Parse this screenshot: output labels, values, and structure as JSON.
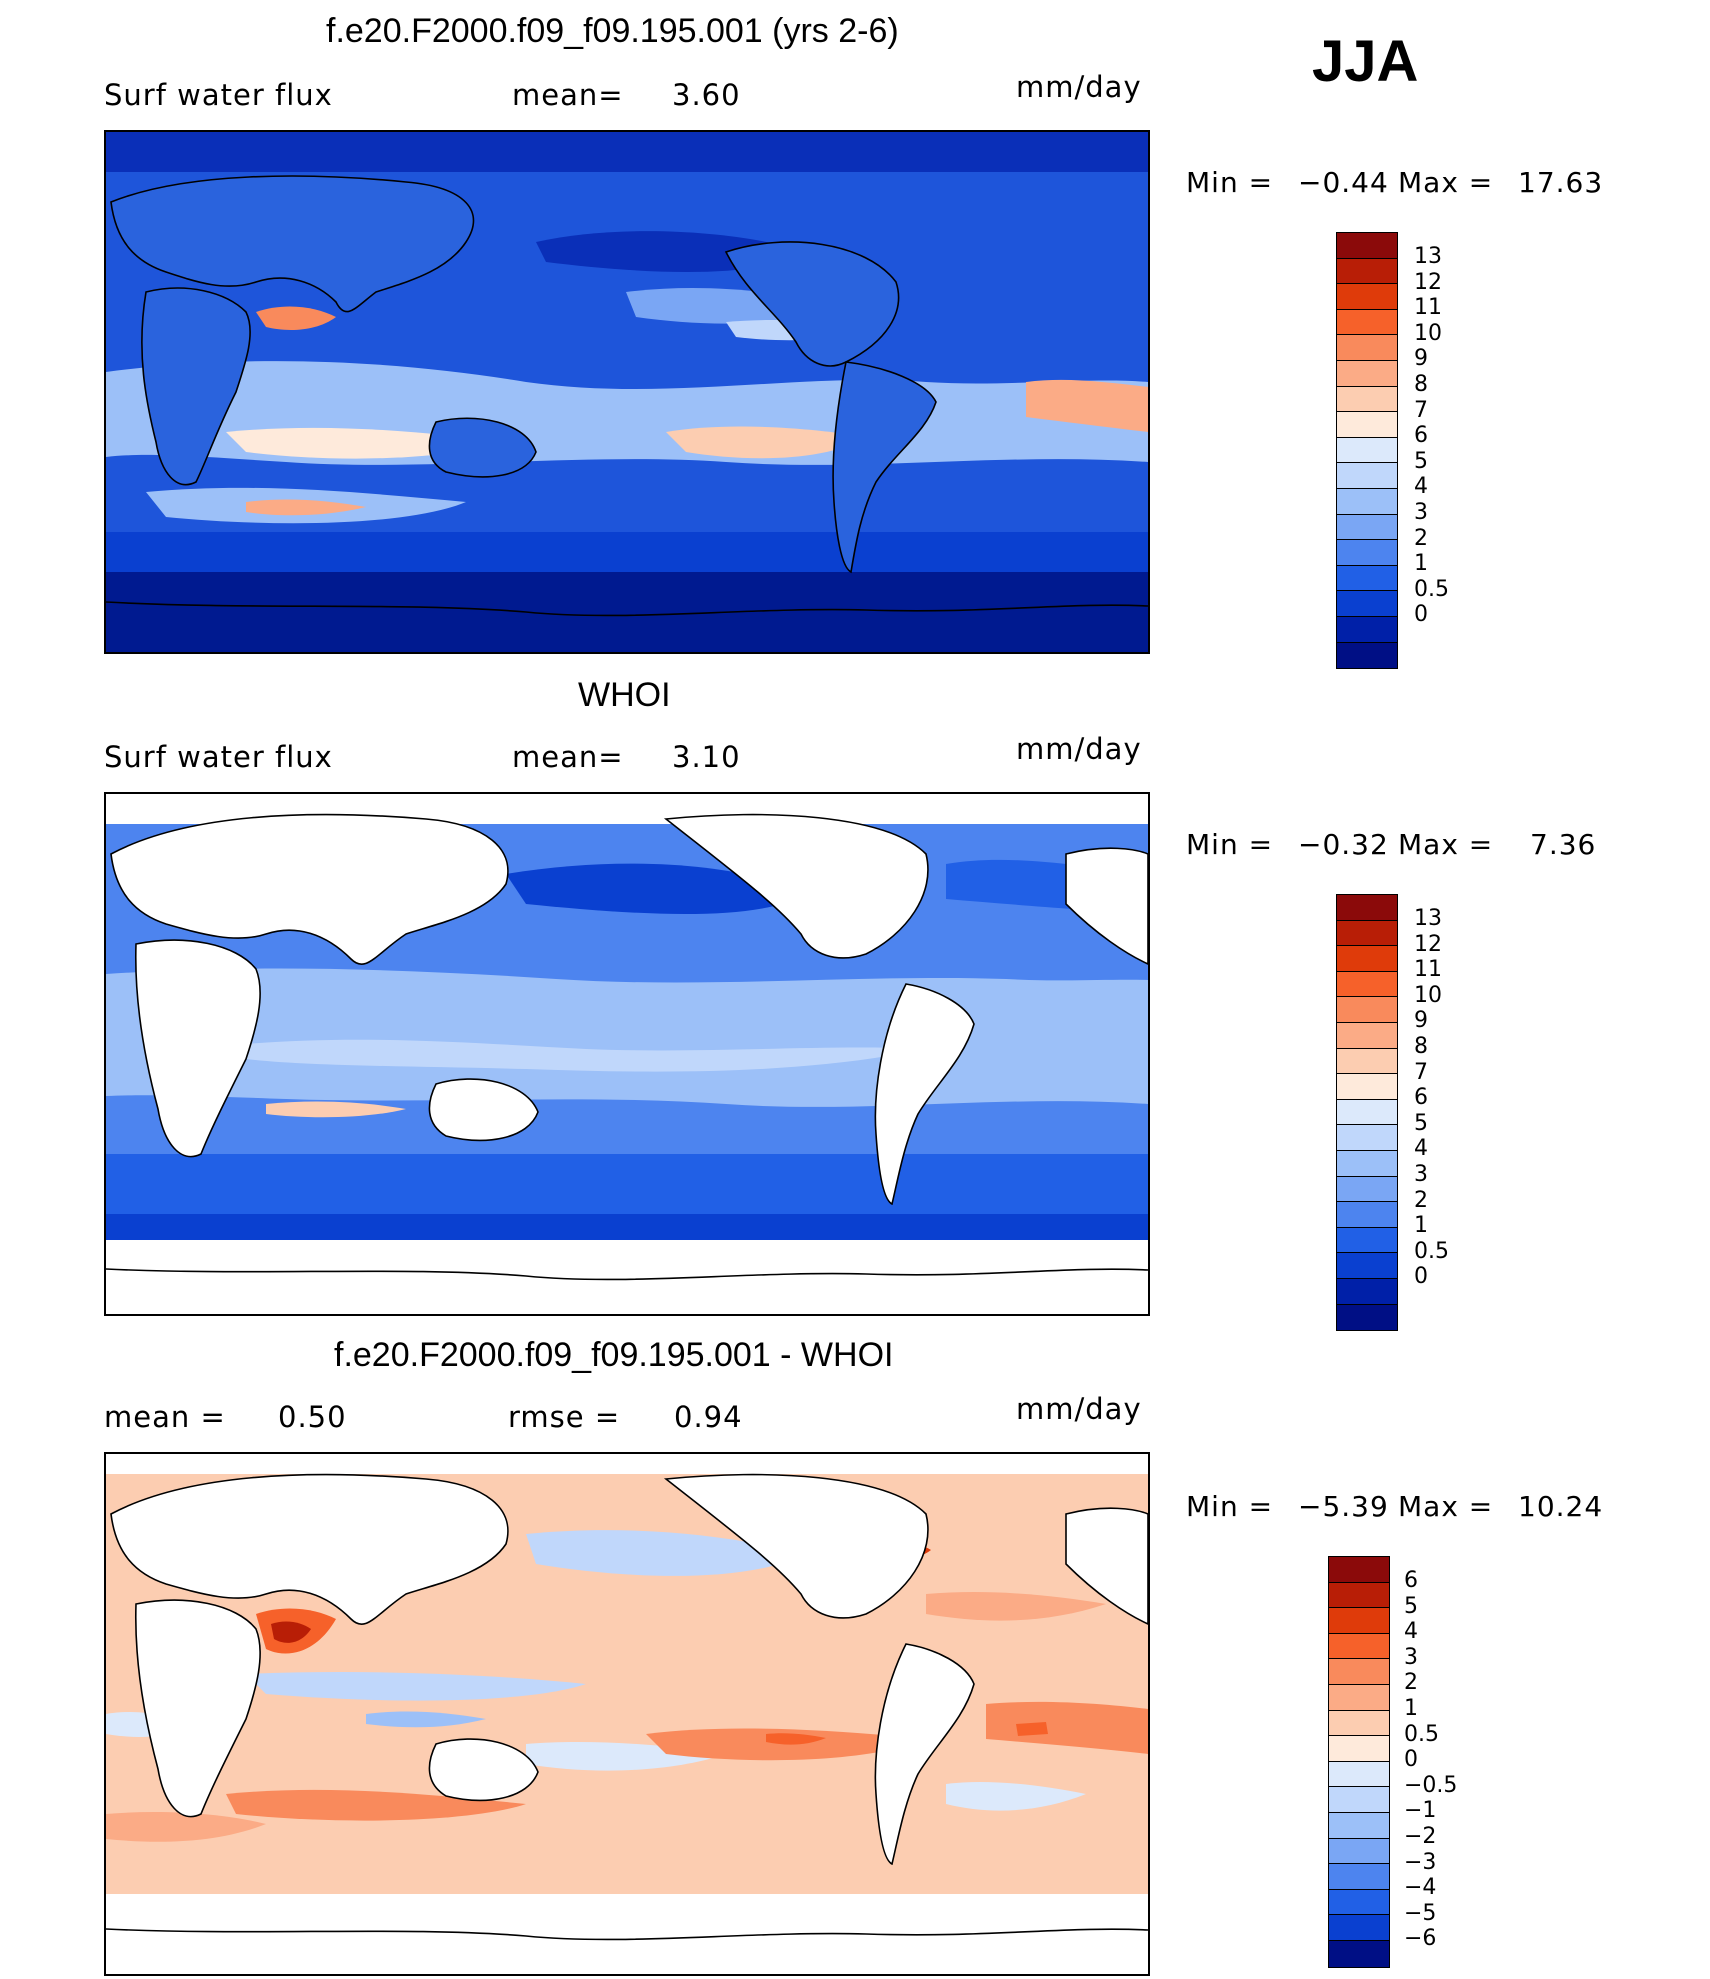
{
  "season": "JJA",
  "units": "mm/day",
  "panels": [
    {
      "title": "f.e20.F2000.f09_f09.195.001 (yrs 2-6)",
      "left_label": "Surf water flux",
      "stat_label": "mean=",
      "stat_value": "3.60",
      "units": "mm/day",
      "min_label": "Min =",
      "min_value": "−0.44",
      "max_label": "Max =",
      "max_value": "17.63"
    },
    {
      "title": "WHOI",
      "left_label": "Surf water flux",
      "stat_label": "mean=",
      "stat_value": "3.10",
      "units": "mm/day",
      "min_label": "Min =",
      "min_value": "−0.32",
      "max_label": "Max =",
      "max_value": "7.36"
    },
    {
      "title": "f.e20.F2000.f09_f09.195.001 - WHOI",
      "left_label": "mean =",
      "stat_label": "rmse =",
      "left_value": "0.50",
      "stat_value": "0.94",
      "units": "mm/day",
      "min_label": "Min =",
      "min_value": "−5.39",
      "max_label": "Max =",
      "max_value": "10.24"
    }
  ],
  "colorbars": {
    "field": {
      "labels": [
        "13",
        "12",
        "11",
        "10",
        "9",
        "8",
        "7",
        "6",
        "5",
        "4",
        "3",
        "2",
        "1",
        "0.5",
        "0"
      ],
      "colors": [
        "#8b0a0a",
        "#b81e06",
        "#df3b0a",
        "#f6612a",
        "#f98a5c",
        "#fbab86",
        "#fccdb1",
        "#feeadb",
        "#dce9fb",
        "#c0d7fb",
        "#9cc0f8",
        "#7aa6f4",
        "#4d84ef",
        "#2160e6",
        "#0a40d0",
        "#0020a8",
        "#000f85"
      ]
    },
    "diff": {
      "labels": [
        "6",
        "5",
        "4",
        "3",
        "2",
        "1",
        "0.5",
        "0",
        "−0.5",
        "−1",
        "−2",
        "−3",
        "−4",
        "−5",
        "−6"
      ],
      "colors": [
        "#8b0a0a",
        "#b81e06",
        "#df3b0a",
        "#f6612a",
        "#f98a5c",
        "#fbab86",
        "#fccdb1",
        "#feeadb",
        "#dce9fb",
        "#c0d7fb",
        "#9cc0f8",
        "#7aa6f4",
        "#4d84ef",
        "#2160e6",
        "#0a40d0",
        "#000f85"
      ]
    }
  }
}
